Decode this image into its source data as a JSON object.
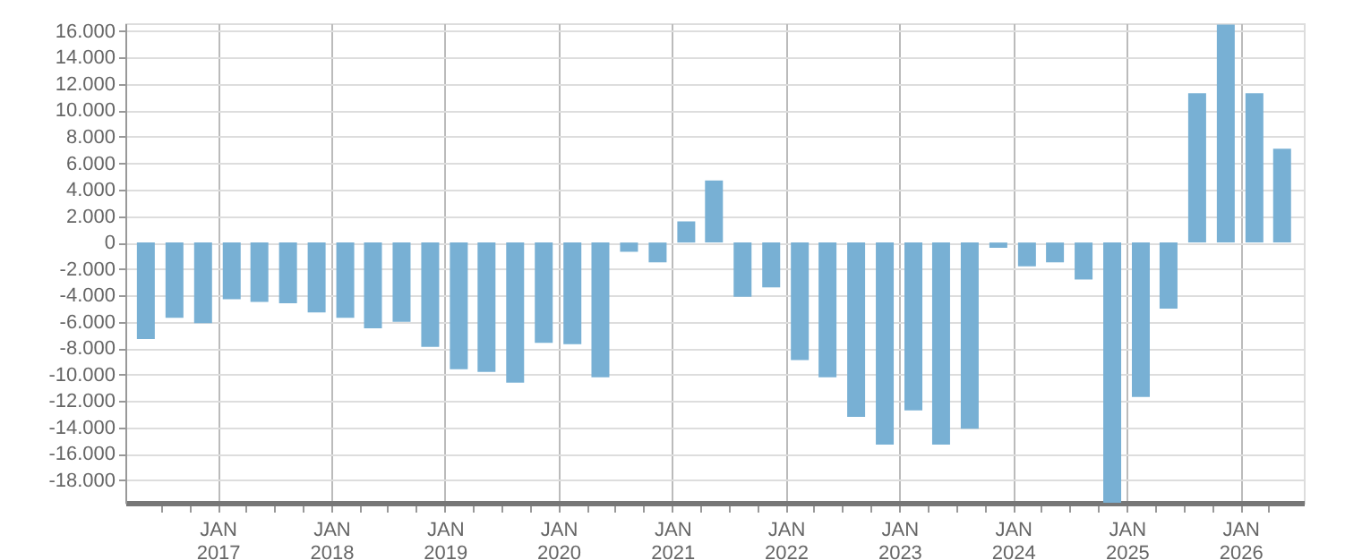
{
  "chart_data": {
    "type": "bar",
    "x": [
      "2016-05-15",
      "2016-08-15",
      "2016-11-15",
      "2017-02-15",
      "2017-05-15",
      "2017-08-15",
      "2017-11-15",
      "2018-02-15",
      "2018-05-15",
      "2018-08-15",
      "2018-11-15",
      "2019-02-15",
      "2019-05-15",
      "2019-08-15",
      "2019-11-15",
      "2020-02-15",
      "2020-05-15",
      "2020-08-15",
      "2020-11-15",
      "2021-02-15",
      "2021-05-15",
      "2021-08-15",
      "2021-11-15",
      "2022-02-15",
      "2022-05-15",
      "2022-08-15",
      "2022-11-15",
      "2023-02-15",
      "2023-05-15",
      "2023-08-15",
      "2023-11-15",
      "2024-02-15",
      "2024-05-15",
      "2024-08-15",
      "2024-11-15",
      "2025-02-15",
      "2025-05-15",
      "2025-08-15",
      "2025-11-15",
      "2026-02-15",
      "2026-05-15"
    ],
    "series": [
      {
        "color": "#78b0d4",
        "values": [
          -7300,
          -5700,
          -6100,
          -4300,
          -4500,
          -4600,
          -5300,
          -5700,
          -6500,
          -6000,
          -7900,
          -9600,
          -9800,
          -10600,
          -7600,
          -7700,
          -10200,
          -700,
          -1500,
          1600,
          4700,
          -4100,
          -3400,
          -8900,
          -10200,
          -13200,
          -15300,
          -12700,
          -15300,
          -14100,
          -400,
          -1800,
          -1500,
          -2800,
          -19700,
          -11700,
          -5000,
          11300,
          16500,
          11300,
          7100
        ]
      }
    ],
    "xlim": [
      "2016-04-08",
      "2026-06-25"
    ],
    "xticks": [
      {
        "value": "2016-07-01",
        "label": null
      },
      {
        "value": "2016-10-01",
        "label": null
      },
      {
        "value": "2017-01-01",
        "label": "JAN 2017"
      },
      {
        "value": "2017-04-01",
        "label": null
      },
      {
        "value": "2017-07-01",
        "label": null
      },
      {
        "value": "2017-10-01",
        "label": null
      },
      {
        "value": "2018-01-01",
        "label": "JAN 2018"
      },
      {
        "value": "2018-04-01",
        "label": null
      },
      {
        "value": "2018-07-01",
        "label": null
      },
      {
        "value": "2018-10-01",
        "label": null
      },
      {
        "value": "2019-01-01",
        "label": "JAN 2019"
      },
      {
        "value": "2019-04-01",
        "label": null
      },
      {
        "value": "2019-07-01",
        "label": null
      },
      {
        "value": "2019-10-01",
        "label": null
      },
      {
        "value": "2020-01-01",
        "label": "JAN 2020"
      },
      {
        "value": "2020-04-01",
        "label": null
      },
      {
        "value": "2020-07-01",
        "label": null
      },
      {
        "value": "2020-10-01",
        "label": null
      },
      {
        "value": "2021-01-01",
        "label": "JAN 2021"
      },
      {
        "value": "2021-04-01",
        "label": null
      },
      {
        "value": "2021-07-01",
        "label": null
      },
      {
        "value": "2021-10-01",
        "label": null
      },
      {
        "value": "2022-01-01",
        "label": "JAN 2022"
      },
      {
        "value": "2022-04-01",
        "label": null
      },
      {
        "value": "2022-07-01",
        "label": null
      },
      {
        "value": "2022-10-01",
        "label": null
      },
      {
        "value": "2023-01-01",
        "label": "JAN 2023"
      },
      {
        "value": "2023-04-01",
        "label": null
      },
      {
        "value": "2023-07-01",
        "label": null
      },
      {
        "value": "2023-10-01",
        "label": null
      },
      {
        "value": "2024-01-01",
        "label": "JAN 2024"
      },
      {
        "value": "2024-04-01",
        "label": null
      },
      {
        "value": "2024-07-01",
        "label": null
      },
      {
        "value": "2024-10-01",
        "label": null
      },
      {
        "value": "2025-01-01",
        "label": "JAN 2025"
      },
      {
        "value": "2025-04-01",
        "label": null
      },
      {
        "value": "2025-07-01",
        "label": null
      },
      {
        "value": "2025-10-01",
        "label": null
      },
      {
        "value": "2026-01-01",
        "label": "JAN 2026"
      },
      {
        "value": "2026-04-01",
        "label": null
      }
    ],
    "ylim": [
      -19700,
      16600
    ],
    "yticks": [
      {
        "value": -18000,
        "label": "-18.000"
      },
      {
        "value": -16000,
        "label": "-16.000"
      },
      {
        "value": -14000,
        "label": "-14.000"
      },
      {
        "value": -12000,
        "label": "-12.000"
      },
      {
        "value": -10000,
        "label": "-10.000"
      },
      {
        "value": -8000,
        "label": "-8.000"
      },
      {
        "value": -6000,
        "label": "-6.000"
      },
      {
        "value": -4000,
        "label": "-4.000"
      },
      {
        "value": -2000,
        "label": "-2.000"
      },
      {
        "value": 0,
        "label": "0"
      },
      {
        "value": 2000,
        "label": "2.000"
      },
      {
        "value": 4000,
        "label": "4.000"
      },
      {
        "value": 6000,
        "label": "6.000"
      },
      {
        "value": 8000,
        "label": "8.000"
      },
      {
        "value": 10000,
        "label": "10.000"
      },
      {
        "value": 12000,
        "label": "12.000"
      },
      {
        "value": 14000,
        "label": "14.000"
      },
      {
        "value": 16000,
        "label": "16.000"
      }
    ],
    "grid": true
  }
}
